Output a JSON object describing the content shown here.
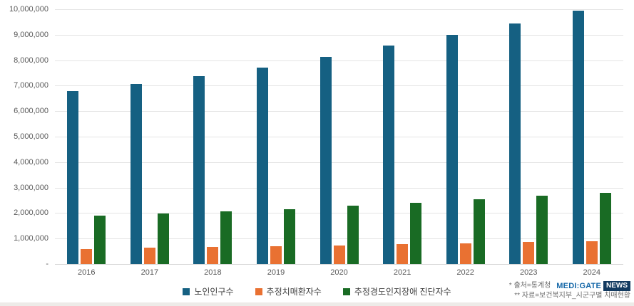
{
  "chart_data": {
    "type": "bar",
    "title": "",
    "categories": [
      "2016",
      "2017",
      "2018",
      "2019",
      "2020",
      "2021",
      "2022",
      "2023",
      "2024"
    ],
    "series": [
      {
        "name": "노인인구수",
        "color": "#156082",
        "values": [
          6780000,
          7070000,
          7380000,
          7700000,
          8130000,
          8580000,
          9000000,
          9450000,
          9950000
        ]
      },
      {
        "name": "추정치매환자수",
        "color": "#E97132",
        "values": [
          600000,
          630000,
          660000,
          700000,
          720000,
          770000,
          820000,
          860000,
          900000
        ]
      },
      {
        "name": "추정경도인지장애 진단자수",
        "color": "#196B24",
        "values": [
          1890000,
          1970000,
          2080000,
          2160000,
          2280000,
          2410000,
          2530000,
          2670000,
          2780000
        ]
      }
    ],
    "xlabel": "",
    "ylabel": "",
    "ylim": [
      0,
      10000000
    ],
    "ytick_interval": 1000000,
    "ytick_labels": [
      "-",
      "1,000,000",
      "2,000,000",
      "3,000,000",
      "4,000,000",
      "5,000,000",
      "6,000,000",
      "7,000,000",
      "8,000,000",
      "9,000,000",
      "10,000,000"
    ],
    "grid": true,
    "legend_position": "bottom"
  },
  "footnotes": {
    "source1": "* 출처=통계청",
    "source2": "** 자료=보건복지부_시군구별 치매현황"
  },
  "logo": {
    "brand": "MEDI:GATE",
    "badge": "NEWS",
    "brand_color": "#1467a8",
    "badge_bg": "#123a60"
  }
}
